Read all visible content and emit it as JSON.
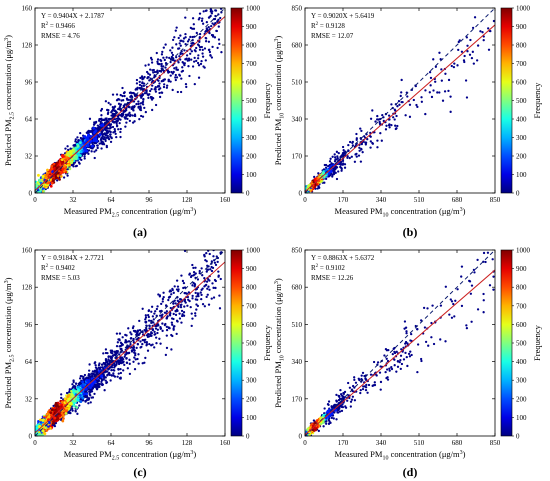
{
  "colors": {
    "regression_line": "#cc2222",
    "identity_line": "#0a1a6e",
    "frame": "#000000"
  },
  "colorbar_label": "Frequency",
  "colorbar_ticks": [
    "0",
    "100",
    "200",
    "300",
    "400",
    "500",
    "600",
    "700",
    "800",
    "900",
    "1000"
  ],
  "chart_data": [
    {
      "type": "scatter",
      "panel_label": "(a)",
      "xlabel": "Measured PM2.5 concentration (μg/m3)",
      "xlabel_parts": {
        "pre": "Measured PM",
        "sub": "2.5",
        "mid": " concentration (μg/m",
        "sup": "3",
        "post": ")"
      },
      "ylabel_parts": {
        "pre": "Predicted PM",
        "sub": "2.5",
        "mid": " concentration (μg/m",
        "sup": "3",
        "post": ")"
      },
      "xlim": [
        0,
        160
      ],
      "ylim": [
        0,
        160
      ],
      "xticks": [
        0,
        32,
        64,
        96,
        128,
        160
      ],
      "yticks": [
        0,
        32,
        64,
        96,
        128,
        160
      ],
      "equation": "Y = 0.9404X + 2.1787",
      "r2": "0.9466",
      "rmse": "4.76",
      "fit": {
        "slope": 0.9404,
        "intercept": 2.1787
      },
      "grid": false,
      "legend": "none"
    },
    {
      "type": "scatter",
      "panel_label": "(b)",
      "xlabel": "Measured PM10 concentration (μg/m3)",
      "xlabel_parts": {
        "pre": "Measured PM",
        "sub": "10",
        "mid": " concentration (μg/m",
        "sup": "3",
        "post": ")"
      },
      "ylabel_parts": {
        "pre": "Predicted PM",
        "sub": "10",
        "mid": " concentration (μg/m",
        "sup": "3",
        "post": ")"
      },
      "xlim": [
        0,
        850
      ],
      "ylim": [
        0,
        850
      ],
      "xticks": [
        0,
        170,
        340,
        510,
        680,
        850
      ],
      "yticks": [
        0,
        170,
        340,
        510,
        680,
        850
      ],
      "equation": "Y = 0.9020X + 5.6419",
      "r2": "0.9128",
      "rmse": "12.07",
      "fit": {
        "slope": 0.902,
        "intercept": 5.6419
      },
      "grid": false,
      "legend": "none"
    },
    {
      "type": "scatter",
      "panel_label": "(c)",
      "xlabel": "Measured PM2.5 concentration (μg/m3)",
      "xlabel_parts": {
        "pre": "Measured PM",
        "sub": "2.5",
        "mid": " concentration (μg/m",
        "sup": "3",
        "post": ")"
      },
      "ylabel_parts": {
        "pre": "Predicted PM",
        "sub": "2.5",
        "mid": " concentration (μg/m",
        "sup": "3",
        "post": ")"
      },
      "xlim": [
        0,
        160
      ],
      "ylim": [
        0,
        160
      ],
      "xticks": [
        0,
        32,
        64,
        96,
        128,
        160
      ],
      "yticks": [
        0,
        32,
        64,
        96,
        128,
        160
      ],
      "equation": "Y = 0.9184X + 2.7721",
      "r2": "0.9402",
      "rmse": "5.03",
      "fit": {
        "slope": 0.9184,
        "intercept": 2.7721
      },
      "grid": false,
      "legend": "none"
    },
    {
      "type": "scatter",
      "panel_label": "(d)",
      "xlabel": "Measured PM10 concentration (μg/m3)",
      "xlabel_parts": {
        "pre": "Measured PM",
        "sub": "10",
        "mid": " concentration (μg/m",
        "sup": "3",
        "post": ")"
      },
      "ylabel_parts": {
        "pre": "Predicted PM",
        "sub": "10",
        "mid": " concentration (μg/m",
        "sup": "3",
        "post": ")"
      },
      "xlim": [
        0,
        850
      ],
      "ylim": [
        0,
        850
      ],
      "xticks": [
        0,
        170,
        340,
        510,
        680,
        850
      ],
      "yticks": [
        0,
        170,
        340,
        510,
        680,
        850
      ],
      "equation": "Y = 0.8863X + 5.6372",
      "r2": "0.9102",
      "rmse": "12.26",
      "fit": {
        "slope": 0.8863,
        "intercept": 5.6372
      },
      "grid": false,
      "legend": "none"
    }
  ]
}
